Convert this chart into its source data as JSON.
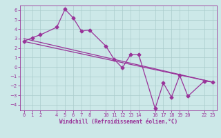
{
  "xlabel": "Windchill (Refroidissement éolien,°C)",
  "bg_color": "#cce8e8",
  "grid_color": "#aacccc",
  "line_color": "#993399",
  "spine_color": "#993399",
  "xlim": [
    -0.5,
    23.5
  ],
  "ylim": [
    -4.6,
    6.5
  ],
  "xticks": [
    0,
    1,
    2,
    4,
    5,
    6,
    7,
    8,
    10,
    11,
    12,
    13,
    14,
    16,
    17,
    18,
    19,
    20,
    22,
    23
  ],
  "yticks": [
    -4,
    -3,
    -2,
    -1,
    0,
    1,
    2,
    3,
    4,
    5,
    6
  ],
  "line1_x": [
    0,
    1,
    2,
    4,
    5,
    6,
    7,
    8,
    10,
    11,
    12,
    13,
    14,
    16,
    17,
    18,
    19,
    20,
    22,
    23
  ],
  "line1_y": [
    2.7,
    3.1,
    3.4,
    4.2,
    6.1,
    5.2,
    3.8,
    3.9,
    2.2,
    0.8,
    -0.1,
    1.3,
    1.3,
    -4.4,
    -1.7,
    -3.2,
    -0.9,
    -3.1,
    -1.5,
    -1.6
  ],
  "line2_x": [
    0,
    23
  ],
  "line2_y": [
    2.7,
    -1.6
  ],
  "line3_x": [
    0,
    23
  ],
  "line3_y": [
    3.0,
    -1.6
  ],
  "marker": "D",
  "markersize": 2.5,
  "linewidth": 0.9,
  "tick_fontsize": 5.0,
  "xlabel_fontsize": 5.5
}
